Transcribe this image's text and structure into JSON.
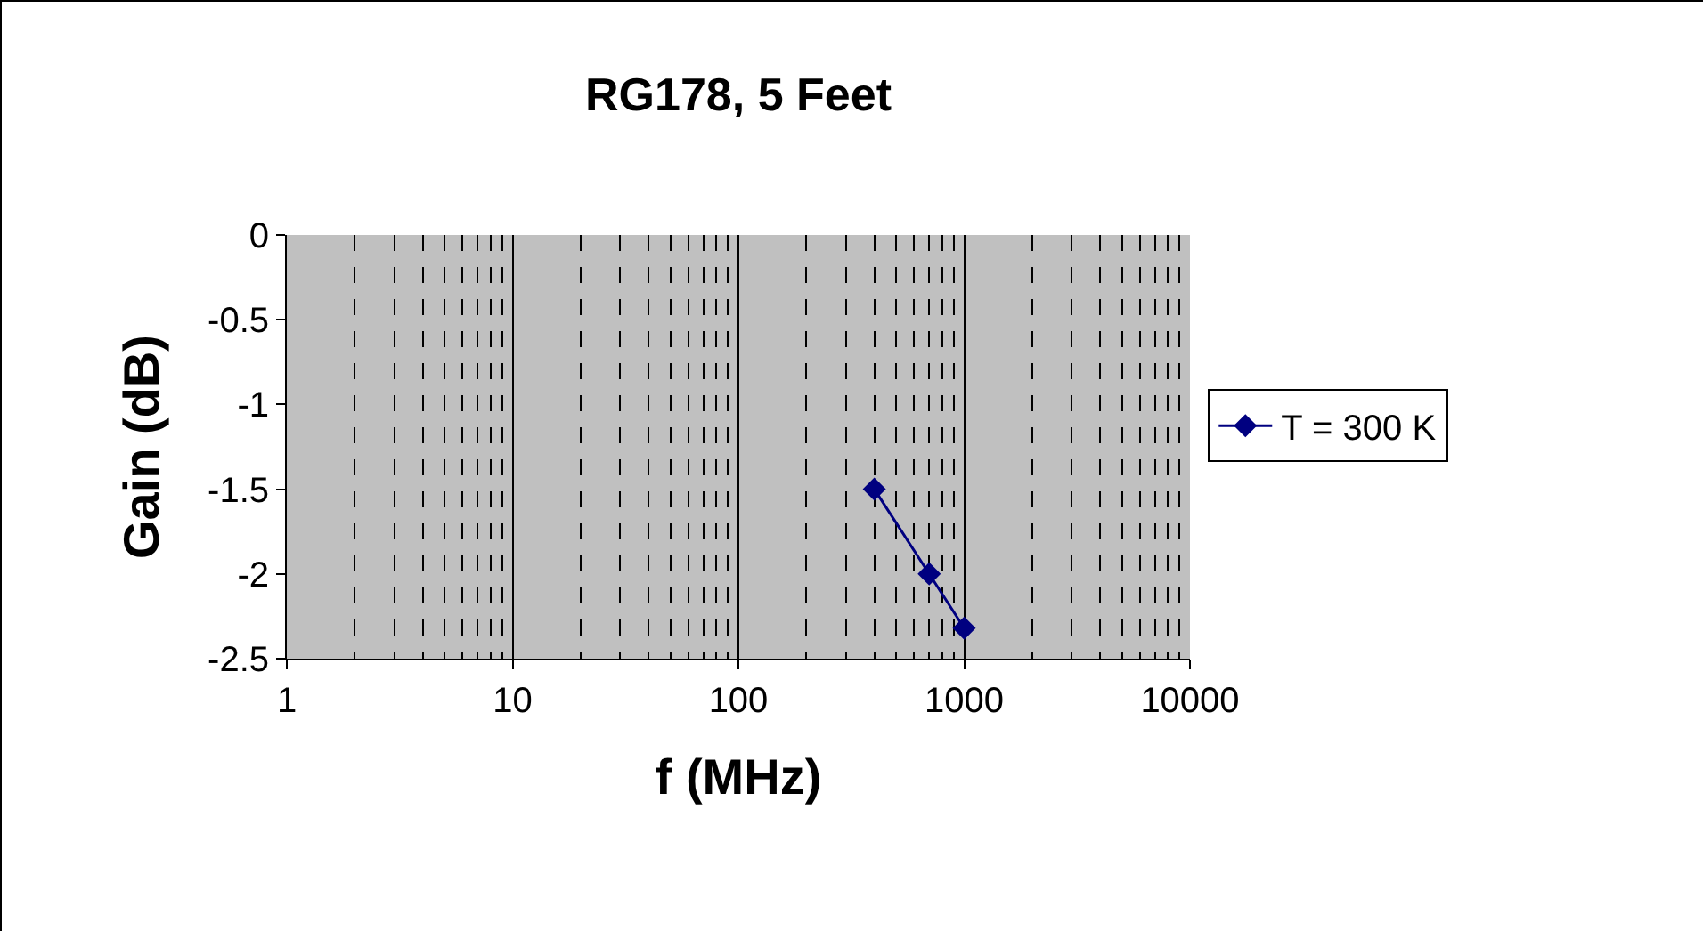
{
  "chart_data": {
    "type": "line",
    "title": "RG178, 5 Feet",
    "xlabel": "f (MHz)",
    "ylabel": "Gain (dB)",
    "x": [
      400,
      700,
      1000
    ],
    "series": [
      {
        "name": "T = 300 K",
        "color": "#000080",
        "values": [
          -1.5,
          -2.0,
          -2.32
        ]
      }
    ],
    "log": "x",
    "xlim": [
      1,
      10000
    ],
    "xticks": [
      1,
      10,
      100,
      1000,
      10000
    ],
    "ylim": [
      -2.5,
      0
    ],
    "yticks": [
      -2.5,
      -2,
      -1.5,
      -1,
      -0.5,
      0
    ],
    "grid": "x",
    "legend": "right",
    "marker": "diamond",
    "line_style": "solid"
  }
}
